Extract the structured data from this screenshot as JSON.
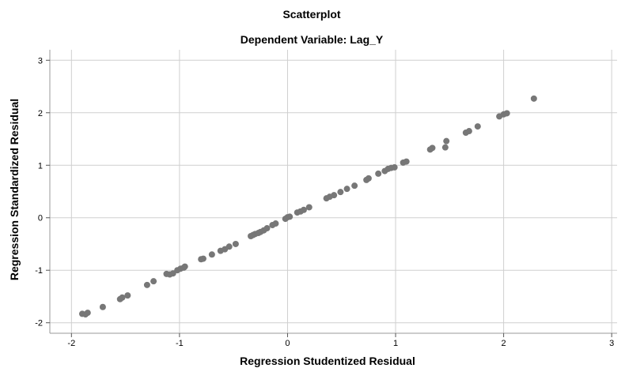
{
  "chart_data": {
    "type": "scatter",
    "title": "Scatterplot",
    "subtitle": "Dependent Variable: Lag_Y",
    "xlabel": "Regression Studentized Residual",
    "ylabel": "Regression Standardized Residual",
    "xlim": [
      -2.2,
      3.05
    ],
    "ylim": [
      -2.2,
      3.2
    ],
    "xticks": [
      -2,
      -1,
      0,
      1,
      2,
      3
    ],
    "yticks": [
      -2,
      -1,
      0,
      1,
      2,
      3
    ],
    "grid": true,
    "point_color": "#777777",
    "points": [
      [
        -1.9,
        -1.83
      ],
      [
        -1.87,
        -1.84
      ],
      [
        -1.85,
        -1.81
      ],
      [
        -1.71,
        -1.7
      ],
      [
        -1.55,
        -1.55
      ],
      [
        -1.53,
        -1.52
      ],
      [
        -1.48,
        -1.48
      ],
      [
        -1.3,
        -1.28
      ],
      [
        -1.24,
        -1.21
      ],
      [
        -1.12,
        -1.07
      ],
      [
        -1.09,
        -1.08
      ],
      [
        -1.06,
        -1.06
      ],
      [
        -1.02,
        -1.0
      ],
      [
        -0.99,
        -0.97
      ],
      [
        -0.96,
        -0.95
      ],
      [
        -0.95,
        -0.93
      ],
      [
        -0.8,
        -0.79
      ],
      [
        -0.78,
        -0.78
      ],
      [
        -0.7,
        -0.7
      ],
      [
        -0.62,
        -0.63
      ],
      [
        -0.58,
        -0.6
      ],
      [
        -0.54,
        -0.55
      ],
      [
        -0.48,
        -0.5
      ],
      [
        -0.34,
        -0.35
      ],
      [
        -0.32,
        -0.33
      ],
      [
        -0.3,
        -0.31
      ],
      [
        -0.27,
        -0.29
      ],
      [
        -0.25,
        -0.27
      ],
      [
        -0.22,
        -0.24
      ],
      [
        -0.19,
        -0.2
      ],
      [
        -0.14,
        -0.14
      ],
      [
        -0.11,
        -0.11
      ],
      [
        -0.02,
        -0.02
      ],
      [
        0.0,
        0.01
      ],
      [
        0.02,
        0.02
      ],
      [
        0.09,
        0.1
      ],
      [
        0.12,
        0.12
      ],
      [
        0.15,
        0.15
      ],
      [
        0.2,
        0.2
      ],
      [
        0.36,
        0.37
      ],
      [
        0.39,
        0.4
      ],
      [
        0.43,
        0.43
      ],
      [
        0.49,
        0.49
      ],
      [
        0.55,
        0.55
      ],
      [
        0.62,
        0.61
      ],
      [
        0.73,
        0.72
      ],
      [
        0.75,
        0.75
      ],
      [
        0.84,
        0.84
      ],
      [
        0.9,
        0.89
      ],
      [
        0.93,
        0.93
      ],
      [
        0.96,
        0.95
      ],
      [
        0.99,
        0.96
      ],
      [
        1.07,
        1.05
      ],
      [
        1.1,
        1.07
      ],
      [
        1.32,
        1.3
      ],
      [
        1.34,
        1.33
      ],
      [
        1.46,
        1.34
      ],
      [
        1.47,
        1.46
      ],
      [
        1.65,
        1.62
      ],
      [
        1.68,
        1.65
      ],
      [
        1.76,
        1.74
      ],
      [
        1.96,
        1.93
      ],
      [
        2.0,
        1.97
      ],
      [
        2.03,
        1.99
      ],
      [
        2.28,
        2.27
      ]
    ]
  }
}
